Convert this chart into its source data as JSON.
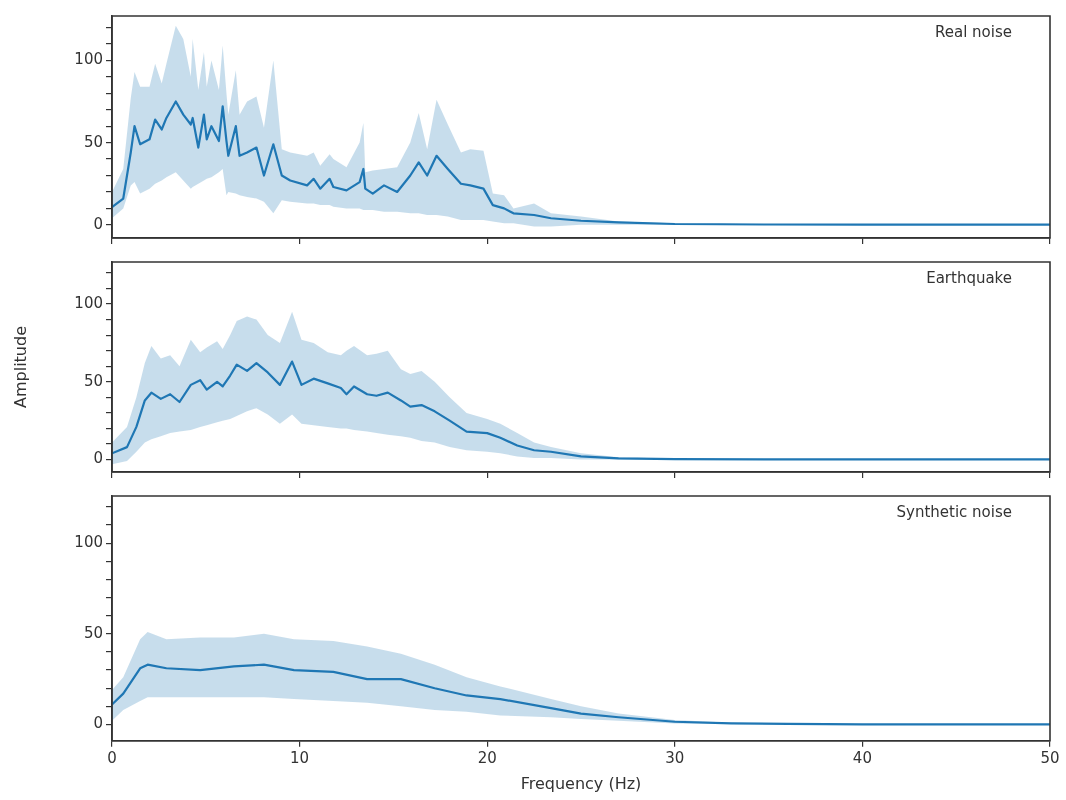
{
  "chart_data": [
    {
      "type": "line",
      "title": "Real noise",
      "xlim": [
        0,
        50
      ],
      "xticks": [
        0,
        10,
        20,
        30,
        40,
        50
      ],
      "ylim": [
        -8,
        127
      ],
      "yticks": [
        0,
        {
          "value": 10,
          "label": null
        },
        {
          "value": 20,
          "label": null
        },
        {
          "value": 30,
          "label": null
        },
        {
          "value": 40,
          "label": null
        },
        50,
        {
          "value": 60,
          "label": null
        },
        {
          "value": 70,
          "label": null
        },
        {
          "value": 80,
          "label": null
        },
        {
          "value": 90,
          "label": null
        },
        100,
        {
          "value": 110,
          "label": null
        },
        {
          "value": 120,
          "label": null
        }
      ],
      "tick_labels": "y",
      "marker": "none",
      "series": [
        {
          "color": "#1f77b4",
          "x": [
            0,
            0.6,
            1.0,
            1.2,
            1.5,
            2.0,
            2.3,
            2.65,
            2.9,
            3.4,
            3.8,
            4.2,
            4.3,
            4.6,
            4.9,
            5.05,
            5.3,
            5.7,
            5.9,
            6.1,
            6.2,
            6.6,
            6.8,
            7.2,
            7.7,
            8.1,
            8.6,
            9.05,
            9.5,
            10.4,
            10.75,
            11.1,
            11.6,
            11.8,
            12.5,
            13.2,
            13.4,
            13.5,
            13.9,
            14.5,
            15.2,
            15.9,
            16.35,
            16.8,
            17.3,
            17.9,
            18.6,
            19.1,
            19.8,
            20.3,
            20.9,
            21.4,
            22.5,
            23.4,
            25,
            27,
            30,
            35,
            40,
            50
          ],
          "values": [
            10.7,
            16,
            44,
            60,
            49,
            52,
            64,
            58,
            65,
            75,
            67,
            61,
            65,
            47,
            67,
            52,
            60,
            51,
            72,
            51,
            42,
            60,
            42,
            44,
            47,
            30,
            49,
            30,
            27,
            24,
            28,
            22,
            28,
            23,
            21,
            26,
            34,
            22,
            19,
            24,
            20,
            30,
            38,
            30,
            42,
            34,
            25,
            24,
            22,
            12,
            10,
            7,
            6,
            4,
            2.5,
            1.5,
            0.5,
            0.2,
            0.1,
            0.1
          ],
          "upper": [
            20,
            34,
            77,
            93,
            84,
            84,
            98,
            86,
            98,
            121,
            113,
            90,
            113,
            82,
            105,
            84,
            100,
            82,
            109,
            80,
            67,
            94,
            67,
            75,
            78,
            59,
            100,
            46,
            44,
            42,
            44,
            36,
            43,
            40,
            35,
            50,
            62,
            32,
            33,
            34,
            35,
            50,
            68,
            46,
            76,
            61,
            44,
            46,
            45,
            19,
            18,
            10,
            13,
            7,
            5,
            2,
            1,
            0.3,
            0.1,
            0.1
          ],
          "lower": [
            4,
            10,
            24,
            26,
            19,
            22,
            25,
            27,
            29,
            32,
            27,
            22,
            23,
            25,
            27,
            28,
            29,
            32,
            34,
            18,
            20,
            19,
            18,
            17,
            16,
            14,
            7,
            15,
            14,
            13,
            13,
            12,
            12,
            11,
            10,
            10,
            9,
            9,
            9,
            8,
            8,
            7,
            7,
            6,
            6,
            5,
            3,
            3,
            3,
            2,
            1,
            1,
            -1,
            -1,
            0,
            0,
            0,
            0,
            0,
            0
          ]
        }
      ]
    },
    {
      "type": "line",
      "title": "Earthquake",
      "ylabel": "Amplitude",
      "xlim": [
        0,
        50
      ],
      "xticks": [
        0,
        10,
        20,
        30,
        40,
        50
      ],
      "ylim": [
        -8,
        127
      ],
      "yticks": [
        0,
        {
          "value": 10,
          "label": null
        },
        {
          "value": 20,
          "label": null
        },
        {
          "value": 30,
          "label": null
        },
        {
          "value": 40,
          "label": null
        },
        50,
        {
          "value": 60,
          "label": null
        },
        {
          "value": 70,
          "label": null
        },
        {
          "value": 80,
          "label": null
        },
        {
          "value": 90,
          "label": null
        },
        100,
        {
          "value": 110,
          "label": null
        },
        {
          "value": 120,
          "label": null
        }
      ],
      "tick_labels": "y",
      "marker": "none",
      "series": [
        {
          "color": "#1f77b4",
          "x": [
            0,
            0.8,
            1.3,
            1.75,
            2.1,
            2.6,
            3.1,
            3.6,
            4.2,
            4.7,
            5.05,
            5.6,
            5.9,
            6.3,
            6.65,
            7.2,
            7.7,
            8.3,
            8.95,
            9.6,
            10.1,
            10.75,
            11.5,
            12.2,
            12.5,
            12.9,
            13.6,
            14.1,
            14.7,
            15.4,
            15.9,
            16.5,
            17.2,
            18.0,
            18.9,
            20.0,
            20.7,
            21.6,
            22.5,
            23.4,
            25,
            27,
            30,
            35,
            50
          ],
          "values": [
            4,
            8,
            21,
            38,
            43,
            39,
            42,
            37,
            48,
            51,
            45,
            50,
            47,
            54,
            61,
            57,
            62,
            56,
            48,
            63,
            48,
            52,
            49,
            46,
            42,
            47,
            42,
            41,
            43,
            38,
            34,
            35,
            31,
            25,
            18,
            17,
            14,
            9,
            6,
            5,
            2,
            0.8,
            0.3,
            0.1,
            0.1
          ],
          "upper": [
            11,
            21,
            40,
            62,
            73,
            65,
            67,
            60,
            77,
            69,
            72,
            76,
            71,
            80,
            89,
            92,
            90,
            80,
            75,
            95,
            77,
            75,
            69,
            67,
            70,
            73,
            67,
            68,
            70,
            58,
            55,
            57,
            50,
            40,
            30,
            26,
            23,
            17,
            11,
            8,
            4,
            1.5,
            0.5,
            0.2,
            0.1
          ],
          "lower": [
            -3,
            -1,
            5,
            11,
            13,
            15,
            17,
            18,
            19,
            21,
            22,
            24,
            25,
            26,
            28,
            31,
            33,
            29,
            23,
            29,
            23,
            22,
            21,
            20,
            20,
            19,
            18,
            17,
            16,
            15,
            14,
            12,
            11,
            8,
            6,
            5,
            4,
            2,
            1,
            1,
            0,
            0,
            0,
            0,
            0
          ]
        }
      ]
    },
    {
      "type": "line",
      "title": "Synthetic noise",
      "xlabel": "Frequency (Hz)",
      "xlim": [
        0,
        50
      ],
      "xticks": [
        0,
        10,
        20,
        30,
        40,
        50
      ],
      "ylim": [
        -9,
        126
      ],
      "yticks": [
        0,
        {
          "value": 10,
          "label": null
        },
        {
          "value": 20,
          "label": null
        },
        {
          "value": 30,
          "label": null
        },
        {
          "value": 40,
          "label": null
        },
        50,
        {
          "value": 60,
          "label": null
        },
        {
          "value": 70,
          "label": null
        },
        {
          "value": 80,
          "label": null
        },
        {
          "value": 90,
          "label": null
        },
        100,
        {
          "value": 110,
          "label": null
        },
        {
          "value": 120,
          "label": null
        }
      ],
      "marker": "none",
      "series": [
        {
          "color": "#1f77b4",
          "x": [
            0,
            0.6,
            1.5,
            1.9,
            2.9,
            4.7,
            6.5,
            8.1,
            9.7,
            11.8,
            13.6,
            15.4,
            17.2,
            18.9,
            20.7,
            23.4,
            25,
            27,
            30,
            33,
            36,
            40,
            50
          ],
          "values": [
            11,
            17,
            31,
            33,
            31,
            30,
            32,
            33,
            30,
            29,
            25,
            25,
            20,
            16,
            14,
            9,
            6,
            4,
            1.5,
            0.6,
            0.3,
            0.1,
            0.1
          ],
          "upper": [
            19,
            26,
            47,
            51,
            47,
            48,
            48,
            50,
            47,
            46,
            43,
            39,
            33,
            26,
            21,
            14,
            10,
            6,
            2.5,
            1,
            0.4,
            0.2,
            0.1
          ],
          "lower": [
            2,
            8,
            13,
            15,
            15,
            15,
            15,
            15,
            14,
            13,
            12,
            10,
            8,
            7,
            5,
            4,
            3,
            2,
            0.6,
            0.2,
            0.1,
            0,
            0
          ]
        }
      ]
    }
  ]
}
